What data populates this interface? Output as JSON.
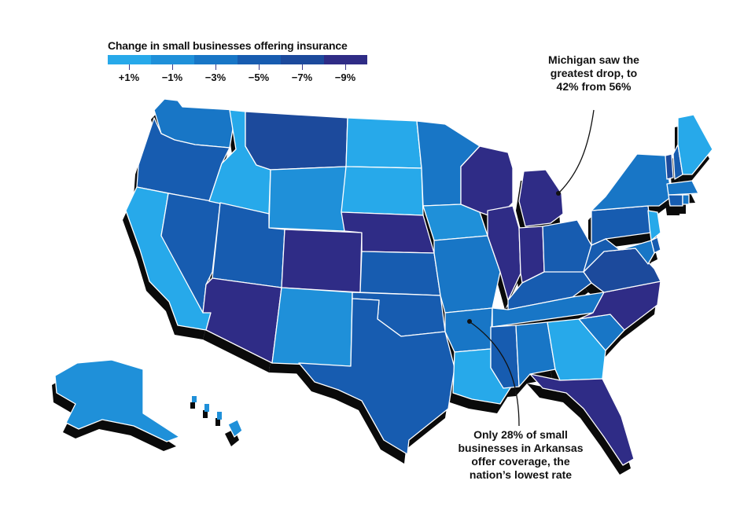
{
  "legend": {
    "title": "Change in small businesses offering insurance",
    "labels": [
      "+1%",
      "−1%",
      "−3%",
      "−5%",
      "−7%",
      "−9%"
    ],
    "colors": [
      "#27a9ea",
      "#1f90d9",
      "#1876c6",
      "#175cb0",
      "#1c4a9c",
      "#2f2c86"
    ]
  },
  "annotations": {
    "michigan": "Michigan saw the greatest drop, to 42% from 56%",
    "arkansas": "Only 28% of small businesses in Arkansas offer coverage, the nation’s lowest rate"
  },
  "map_data": {
    "metric": "Change in small businesses offering insurance",
    "states": {
      "WA": -3,
      "OR": -5,
      "CA": 1,
      "NV": -5,
      "ID": 1,
      "MT": -7,
      "WY": -1,
      "UT": -5,
      "AZ": -9,
      "CO": -9,
      "NM": -1,
      "ND": 1,
      "SD": 1,
      "NE": -9,
      "KS": -5,
      "OK": -5,
      "TX": -5,
      "MN": -3,
      "IA": -1,
      "MO": -3,
      "AR": -3,
      "LA": 1,
      "WI": -9,
      "IL": -9,
      "MI": -9,
      "IN": -9,
      "OH": -5,
      "KY": -5,
      "TN": -3,
      "MS": -5,
      "AL": -3,
      "GA": 1,
      "FL": -9,
      "SC": -3,
      "NC": -9,
      "VA": -7,
      "WV": -5,
      "PA": -5,
      "NY": -3,
      "VT": -7,
      "NH": -5,
      "ME": 1,
      "MA": -3,
      "CT": -5,
      "RI": -3,
      "NJ": 1,
      "DE": -5,
      "MD": -3,
      "AK": -1,
      "HI": -1
    },
    "highlight": {
      "michigan": {
        "current_percent": 42,
        "previous_percent": 56
      },
      "arkansas": {
        "coverage_percent": 28
      }
    }
  }
}
